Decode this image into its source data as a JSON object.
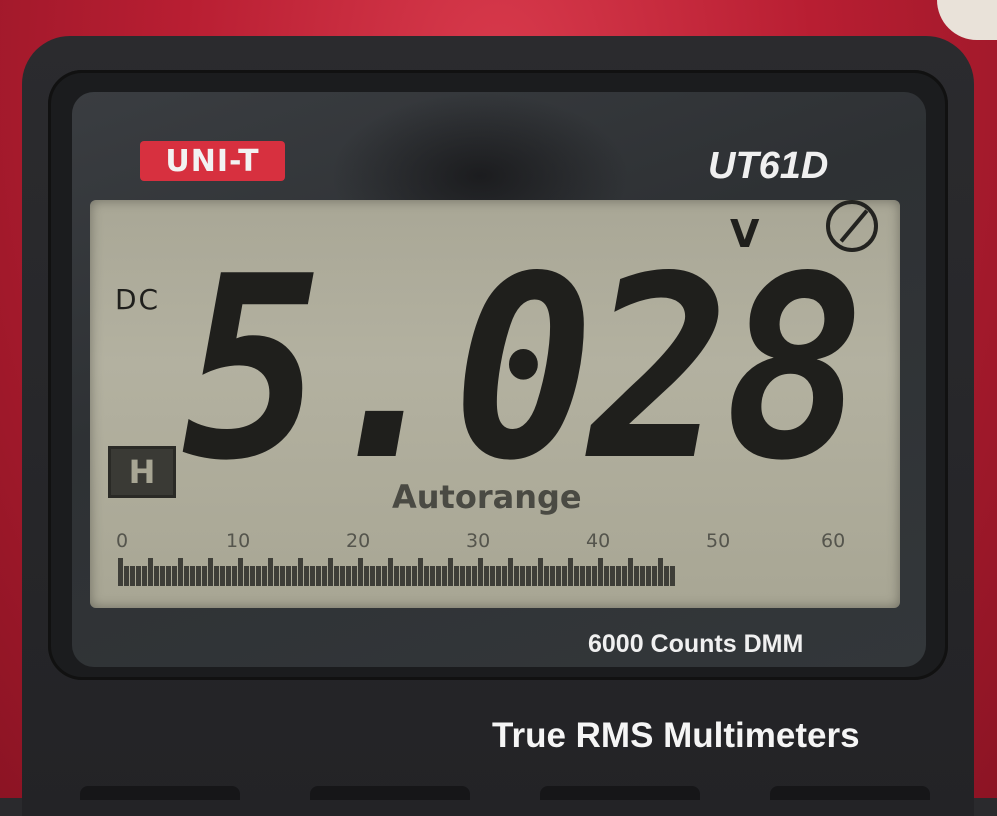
{
  "device": {
    "brand": "UNI-T",
    "model": "UT61D",
    "counts_label": "6000 Counts DMM",
    "subtitle": "True RMS Multimeters"
  },
  "display": {
    "reading": "5.028",
    "unit": "V",
    "mode": "DC",
    "hold": "H",
    "range_mode": "Autorange",
    "bargraph_ticks": [
      "0",
      "10",
      "20",
      "30",
      "40",
      "50",
      "60"
    ],
    "bargraph_level": 0.76
  },
  "colors": {
    "case_red": "#b81e32",
    "lcd_bg": "#b3b1a0",
    "segment": "#1f1f1c"
  },
  "icons": [
    "no-sound-symbol-icon"
  ]
}
